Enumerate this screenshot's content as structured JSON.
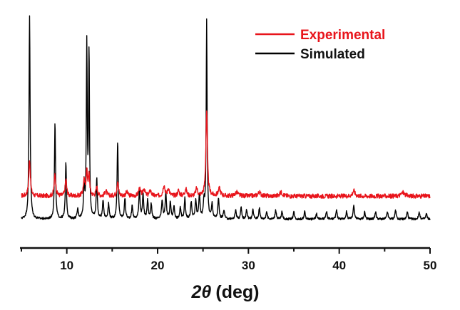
{
  "chart_data": {
    "type": "line",
    "title": "",
    "xlabel_symbol": "2θ",
    "xlabel_unit": "(deg)",
    "ylabel": "",
    "xlim": [
      5,
      50
    ],
    "ylim": [
      0,
      1.3
    ],
    "y_axis_visible": false,
    "grid": false,
    "legend_position": "top-right",
    "x_ticks": [
      10,
      20,
      30,
      40,
      50
    ],
    "series": [
      {
        "name": "Experimental",
        "color": "#e8141b",
        "baseline": 0.28,
        "noise": 0.012,
        "peaks": [
          [
            5.9,
            0.2,
            0.1
          ],
          [
            8.7,
            0.12,
            0.1
          ],
          [
            9.9,
            0.09,
            0.1
          ],
          [
            11.9,
            0.08,
            0.1
          ],
          [
            12.2,
            0.13,
            0.09
          ],
          [
            12.45,
            0.11,
            0.09
          ],
          [
            13.3,
            0.05,
            0.1
          ],
          [
            14.3,
            0.03,
            0.12
          ],
          [
            15.6,
            0.08,
            0.1
          ],
          [
            16.6,
            0.02,
            0.15
          ],
          [
            18.0,
            0.04,
            0.12
          ],
          [
            18.5,
            0.04,
            0.12
          ],
          [
            19.2,
            0.03,
            0.12
          ],
          [
            20.7,
            0.06,
            0.12
          ],
          [
            21.2,
            0.04,
            0.12
          ],
          [
            22.3,
            0.03,
            0.12
          ],
          [
            23.1,
            0.04,
            0.12
          ],
          [
            24.3,
            0.04,
            0.12
          ],
          [
            25.4,
            0.46,
            0.1
          ],
          [
            26.8,
            0.04,
            0.15
          ],
          [
            28.7,
            0.02,
            0.2
          ],
          [
            31.2,
            0.02,
            0.2
          ],
          [
            33.6,
            0.02,
            0.2
          ],
          [
            41.6,
            0.03,
            0.15
          ],
          [
            47.0,
            0.02,
            0.2
          ]
        ]
      },
      {
        "name": "Simulated",
        "color": "#000000",
        "baseline": 0.155,
        "noise": 0.006,
        "peaks": [
          [
            5.9,
            1.1,
            0.07
          ],
          [
            8.7,
            0.52,
            0.07
          ],
          [
            9.9,
            0.31,
            0.07
          ],
          [
            11.2,
            0.05,
            0.08
          ],
          [
            11.9,
            0.18,
            0.07
          ],
          [
            12.2,
            0.93,
            0.06
          ],
          [
            12.45,
            0.89,
            0.06
          ],
          [
            13.3,
            0.22,
            0.07
          ],
          [
            14.0,
            0.1,
            0.08
          ],
          [
            14.6,
            0.08,
            0.08
          ],
          [
            15.6,
            0.42,
            0.07
          ],
          [
            16.4,
            0.11,
            0.08
          ],
          [
            17.2,
            0.07,
            0.08
          ],
          [
            18.0,
            0.16,
            0.08
          ],
          [
            18.4,
            0.13,
            0.08
          ],
          [
            18.9,
            0.1,
            0.08
          ],
          [
            19.3,
            0.08,
            0.08
          ],
          [
            20.5,
            0.1,
            0.08
          ],
          [
            20.9,
            0.14,
            0.08
          ],
          [
            21.4,
            0.09,
            0.08
          ],
          [
            21.8,
            0.07,
            0.08
          ],
          [
            22.5,
            0.06,
            0.08
          ],
          [
            23.0,
            0.11,
            0.08
          ],
          [
            23.7,
            0.09,
            0.08
          ],
          [
            24.2,
            0.1,
            0.08
          ],
          [
            24.6,
            0.13,
            0.08
          ],
          [
            25.1,
            0.09,
            0.08
          ],
          [
            25.4,
            1.07,
            0.06
          ],
          [
            26.0,
            0.08,
            0.08
          ],
          [
            26.7,
            0.11,
            0.08
          ],
          [
            27.3,
            0.05,
            0.08
          ],
          [
            28.6,
            0.05,
            0.08
          ],
          [
            29.2,
            0.06,
            0.08
          ],
          [
            29.8,
            0.05,
            0.08
          ],
          [
            30.5,
            0.05,
            0.08
          ],
          [
            31.2,
            0.06,
            0.08
          ],
          [
            32.0,
            0.04,
            0.08
          ],
          [
            33.0,
            0.05,
            0.08
          ],
          [
            33.7,
            0.04,
            0.08
          ],
          [
            35.0,
            0.04,
            0.08
          ],
          [
            36.2,
            0.04,
            0.08
          ],
          [
            37.5,
            0.03,
            0.08
          ],
          [
            38.6,
            0.04,
            0.08
          ],
          [
            39.7,
            0.05,
            0.08
          ],
          [
            40.8,
            0.04,
            0.08
          ],
          [
            41.6,
            0.08,
            0.08
          ],
          [
            42.8,
            0.04,
            0.08
          ],
          [
            44.0,
            0.04,
            0.08
          ],
          [
            45.3,
            0.04,
            0.08
          ],
          [
            46.2,
            0.05,
            0.08
          ],
          [
            47.5,
            0.04,
            0.08
          ],
          [
            48.8,
            0.04,
            0.08
          ],
          [
            49.6,
            0.03,
            0.08
          ]
        ]
      }
    ]
  }
}
